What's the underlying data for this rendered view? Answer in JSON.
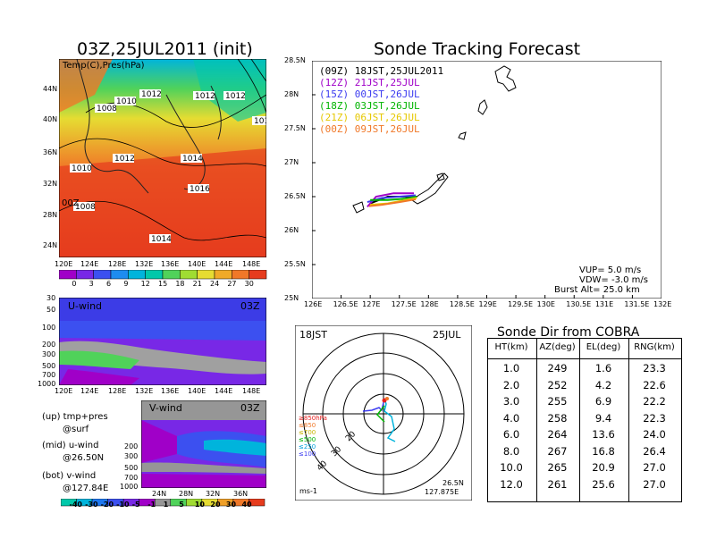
{
  "chart_data": [
    {
      "type": "heatmap",
      "title": "03Z,25JUL2011 (init)",
      "panel_label": "Temp(C),Pres(hPa)",
      "x_ticks": [
        "120E",
        "124E",
        "128E",
        "132E",
        "136E",
        "140E",
        "144E",
        "148E"
      ],
      "y_ticks": [
        "24N",
        "28N",
        "32N",
        "36N",
        "40N",
        "44N"
      ],
      "isobar_labels": [
        "1012",
        "1010",
        "1008",
        "1010",
        "1012",
        "1012",
        "1014",
        "1016",
        "1014",
        "1008",
        "1012",
        "101"
      ],
      "colorbar_ticks": [
        "0",
        "3",
        "6",
        "9",
        "12",
        "15",
        "18",
        "21",
        "24",
        "27",
        "30"
      ],
      "colorbar_colors": [
        "#a000c8",
        "#7828e6",
        "#3c50f0",
        "#1e8cf0",
        "#00b4dc",
        "#00c8aa",
        "#50d25a",
        "#a0dc32",
        "#e6dc32",
        "#f0aa28",
        "#f07828",
        "#e63c1e"
      ]
    },
    {
      "type": "heatmap",
      "title": "U-wind",
      "time": "03Z",
      "y_ticks": [
        "30",
        "50",
        "100",
        "200",
        "300",
        "500",
        "700",
        "1000"
      ],
      "x_ticks": [
        "120E",
        "124E",
        "128E",
        "132E",
        "136E",
        "140E",
        "144E",
        "148E"
      ]
    },
    {
      "type": "heatmap",
      "title": "V-wind",
      "time": "03Z",
      "y_ticks": [
        "200",
        "300",
        "500",
        "700",
        "1000"
      ],
      "x_ticks": [
        "24N",
        "28N",
        "32N",
        "36N"
      ],
      "colorbar_ticks": [
        "-40",
        "-30",
        "-20",
        "-10",
        "-5",
        "-1",
        "1",
        "5",
        "10",
        "20",
        "30",
        "40"
      ],
      "colorbar_colors": [
        "#00c8aa",
        "#00b4dc",
        "#1e78f0",
        "#3c50f0",
        "#7828e6",
        "#a000c8",
        "#969696",
        "#50d25a",
        "#a0dc32",
        "#e6dc32",
        "#f0a028",
        "#f07828",
        "#e63c1e"
      ]
    },
    {
      "type": "line",
      "title": "Sonde Tracking Forecast",
      "x_ticks": [
        "126E",
        "126.5E",
        "127E",
        "127.5E",
        "128E",
        "128.5E",
        "129E",
        "129.5E",
        "130E",
        "130.5E",
        "131E",
        "131.5E",
        "132E"
      ],
      "y_ticks": [
        "25N",
        "25.5N",
        "26N",
        "26.5N",
        "27N",
        "27.5N",
        "28N",
        "28.5N"
      ],
      "xlim": [
        126,
        132
      ],
      "ylim": [
        25,
        28.5
      ],
      "series": [
        {
          "name": "(09Z)  18JST,25JUL2011",
          "color": "#000000"
        },
        {
          "name": "(12Z)  21JST,25JUL",
          "color": "#a000c8"
        },
        {
          "name": "(15Z)  00JST,26JUL",
          "color": "#3c3cf0"
        },
        {
          "name": "(18Z)  03JST,26JUL",
          "color": "#00b400"
        },
        {
          "name": "(21Z)  06JST,26JUL",
          "color": "#e6c800"
        },
        {
          "name": "(00Z)  09JST,26JUL",
          "color": "#f07828"
        }
      ],
      "info": [
        "VUP=  5.0  m/s",
        "VDW= -3.0  m/s",
        "Burst Alt=  25.0  km"
      ]
    },
    {
      "type": "scatter",
      "title_left": "18JST",
      "title_right": "25JUL",
      "level_labels": [
        "≥850hPa",
        "≤850",
        "≤700",
        "≤500",
        "≤250",
        "≤100"
      ],
      "level_colors": [
        "#e61e1e",
        "#f07828",
        "#c8b400",
        "#00b400",
        "#00a0dc",
        "#3c3cf0"
      ],
      "ring_labels": [
        "20",
        "30",
        "40"
      ],
      "unit": "ms-1",
      "location": [
        "26.5N",
        "127.875E"
      ]
    },
    {
      "type": "table",
      "title": "Sonde Dir from COBRA",
      "columns": [
        "HT(km)",
        "AZ(deg)",
        "EL(deg)",
        "RNG(km)"
      ],
      "rows": [
        [
          "1.0",
          "249",
          "1.6",
          "23.3"
        ],
        [
          "2.0",
          "252",
          "4.2",
          "22.6"
        ],
        [
          "3.0",
          "255",
          "6.9",
          "22.2"
        ],
        [
          "4.0",
          "258",
          "9.4",
          "22.3"
        ],
        [
          "6.0",
          "264",
          "13.6",
          "24.0"
        ],
        [
          "8.0",
          "267",
          "16.8",
          "26.4"
        ],
        [
          "10.0",
          "265",
          "20.9",
          "27.0"
        ],
        [
          "12.0",
          "261",
          "25.6",
          "27.0"
        ]
      ]
    }
  ],
  "notes": {
    "up": "(up) tmp+pres",
    "up2": "@surf",
    "mid": "(mid) u-wind",
    "mid2": "@26.50N",
    "bot": "(bot) v-wind",
    "bot2": "@127.84E"
  }
}
